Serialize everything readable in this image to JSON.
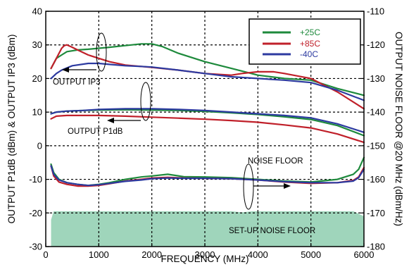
{
  "chart_data": {
    "type": "line",
    "xlabel": "FREQUENCY (MHz)",
    "ylabel_left": "OUTPUT P1dB (dBm) & OUTPUT IP3 (dBm)",
    "ylabel_right": "OUTPUT NOISE FLOOR @20 MHz (dBm/Hz)",
    "xlim": [
      0,
      6000
    ],
    "ylim_left": [
      -30,
      40
    ],
    "ylim_right": [
      -180,
      -110
    ],
    "x_ticks": [
      "0",
      "1000",
      "2000",
      "3000",
      "4000",
      "5000",
      "6000"
    ],
    "y_ticks_left": [
      "-30",
      "-20",
      "-10",
      "0",
      "10",
      "20",
      "30",
      "40"
    ],
    "y_ticks_right": [
      "-180",
      "-170",
      "-160",
      "-150",
      "-140",
      "-130",
      "-120",
      "-110"
    ],
    "grid": "dashed",
    "legend": {
      "placement": "top-right",
      "entries": [
        {
          "label": "+25C",
          "color": "#1e8a3c"
        },
        {
          "label": "+85C",
          "color": "#c0202a"
        },
        {
          "label": "-40C",
          "color": "#2c3aa0"
        }
      ]
    },
    "annotations": [
      {
        "text": "OUTPUT IP3"
      },
      {
        "text": "OUTPUT P1dB"
      },
      {
        "text": "NOISE FLOOR"
      },
      {
        "text": "SET-UP NOISE FLOOR"
      }
    ],
    "setup_noise_floor": {
      "color": "#9fd5bb",
      "x": [
        100,
        150,
        3500,
        3700,
        3900,
        4100,
        5800,
        6000
      ],
      "y": [
        -22,
        -19.5,
        -19.5,
        -19.8,
        -19.5,
        -19.5,
        -19.5,
        -21
      ]
    },
    "groups": [
      {
        "name": "OUTPUT IP3",
        "series": [
          {
            "name": "+25C",
            "color": "#1e8a3c",
            "x": [
              100,
              200,
              300,
              400,
              600,
              800,
              1000,
              1200,
              1500,
              1800,
              2000,
              2200,
              2500,
              3000,
              3500,
              4000,
              4500,
              5000,
              5500,
              6000
            ],
            "y": [
              23,
              26,
              27,
              28,
              28.5,
              28.7,
              29,
              29.3,
              29.8,
              30.3,
              30.3,
              29.5,
              27.5,
              25,
              23,
              21,
              20,
              19.5,
              17,
              15
            ]
          },
          {
            "name": "+85C",
            "color": "#c0202a",
            "x": [
              100,
              200,
              300,
              350,
              400,
              500,
              600,
              800,
              1000,
              1200,
              1500,
              2000,
              2500,
              3000,
              3500,
              3700,
              4000,
              4300,
              4500,
              5000,
              5500,
              6000
            ],
            "y": [
              23,
              26,
              29,
              29.8,
              30,
              29.3,
              28.5,
              27,
              26,
              25,
              24,
              23.3,
              22.5,
              21.5,
              21,
              21.5,
              22,
              22,
              21.5,
              20,
              16,
              11
            ]
          },
          {
            "name": "-40C",
            "color": "#2c3aa0",
            "x": [
              100,
              200,
              300,
              500,
              800,
              1000,
              1200,
              1500,
              1800,
              2000,
              2500,
              3000,
              3500,
              4000,
              4500,
              5000,
              5500,
              6000
            ],
            "y": [
              20,
              21.5,
              22.5,
              23.8,
              24.5,
              24.5,
              24.2,
              23.8,
              23.6,
              23.4,
              22.5,
              21.5,
              20.5,
              20,
              19.5,
              18.8,
              16.5,
              13.5
            ]
          }
        ]
      },
      {
        "name": "OUTPUT P1dB",
        "series": [
          {
            "name": "+25C",
            "color": "#1e8a3c",
            "x": [
              100,
              200,
              400,
              700,
              1000,
              1500,
              2000,
              2500,
              3000,
              3500,
              4000,
              4500,
              5000,
              5500,
              6000
            ],
            "y": [
              9.5,
              10,
              10.3,
              10.5,
              10.6,
              10.7,
              10.6,
              10.5,
              10.2,
              9.8,
              9.3,
              8.6,
              7.8,
              6,
              3
            ]
          },
          {
            "name": "+85C",
            "color": "#c0202a",
            "x": [
              100,
              200,
              400,
              700,
              1000,
              1500,
              2000,
              2500,
              3000,
              3500,
              4000,
              4500,
              5000,
              5500,
              6000
            ],
            "y": [
              8,
              8.8,
              9,
              9,
              9,
              8.8,
              8.5,
              8.2,
              7.9,
              7.5,
              7,
              6.2,
              5.3,
              3.5,
              1
            ]
          },
          {
            "name": "-40C",
            "color": "#2c3aa0",
            "x": [
              100,
              200,
              400,
              700,
              1000,
              1500,
              2000,
              2500,
              3000,
              3500,
              4000,
              4500,
              5000,
              5500,
              6000
            ],
            "y": [
              9.5,
              10,
              10.3,
              10.5,
              10.8,
              11,
              11,
              10.8,
              10.5,
              10,
              9.5,
              9,
              8.3,
              6.5,
              4
            ]
          }
        ]
      },
      {
        "name": "NOISE FLOOR",
        "series": [
          {
            "name": "+25C",
            "color": "#1e8a3c",
            "x": [
              100,
              150,
              250,
              400,
              600,
              800,
              1000,
              1200,
              1500,
              1800,
              2000,
              2300,
              2600,
              3000,
              3500,
              4000,
              4500,
              5000,
              5500,
              5800,
              5900,
              6000
            ],
            "y": [
              -5.5,
              -8,
              -10,
              -11,
              -11.5,
              -11.8,
              -11.5,
              -11,
              -10,
              -9.3,
              -9,
              -8.5,
              -9.2,
              -9.3,
              -9.5,
              -10,
              -10.5,
              -10.8,
              -10,
              -8.5,
              -7,
              -3.5
            ]
          },
          {
            "name": "+85C",
            "color": "#c0202a",
            "x": [
              100,
              150,
              250,
              400,
              600,
              800,
              1000,
              1200,
              1500,
              1800,
              2000,
              2300,
              2600,
              3000,
              3500,
              4000,
              4500,
              5000,
              5500,
              5800,
              5900,
              6000
            ],
            "y": [
              -6,
              -9,
              -10.8,
              -11.5,
              -12,
              -12,
              -11.8,
              -11.3,
              -10.5,
              -10,
              -9.6,
              -9.4,
              -9.6,
              -9.7,
              -9.8,
              -10.2,
              -10.8,
              -11.2,
              -11,
              -10.3,
              -9.3,
              -6.5
            ]
          },
          {
            "name": "-40C",
            "color": "#2c3aa0",
            "x": [
              100,
              150,
              250,
              400,
              600,
              800,
              1000,
              1200,
              1500,
              1800,
              2000,
              2300,
              2600,
              3000,
              3500,
              4000,
              4500,
              5000,
              5500,
              5800,
              5900,
              6000
            ],
            "y": [
              -6,
              -8.5,
              -10.2,
              -11,
              -11.5,
              -11.8,
              -11.6,
              -11.2,
              -10.6,
              -10.2,
              -9.8,
              -9.6,
              -9.7,
              -9.7,
              -9.8,
              -10.2,
              -10.7,
              -11,
              -11,
              -10.5,
              -9.5,
              -7
            ]
          }
        ]
      }
    ]
  }
}
